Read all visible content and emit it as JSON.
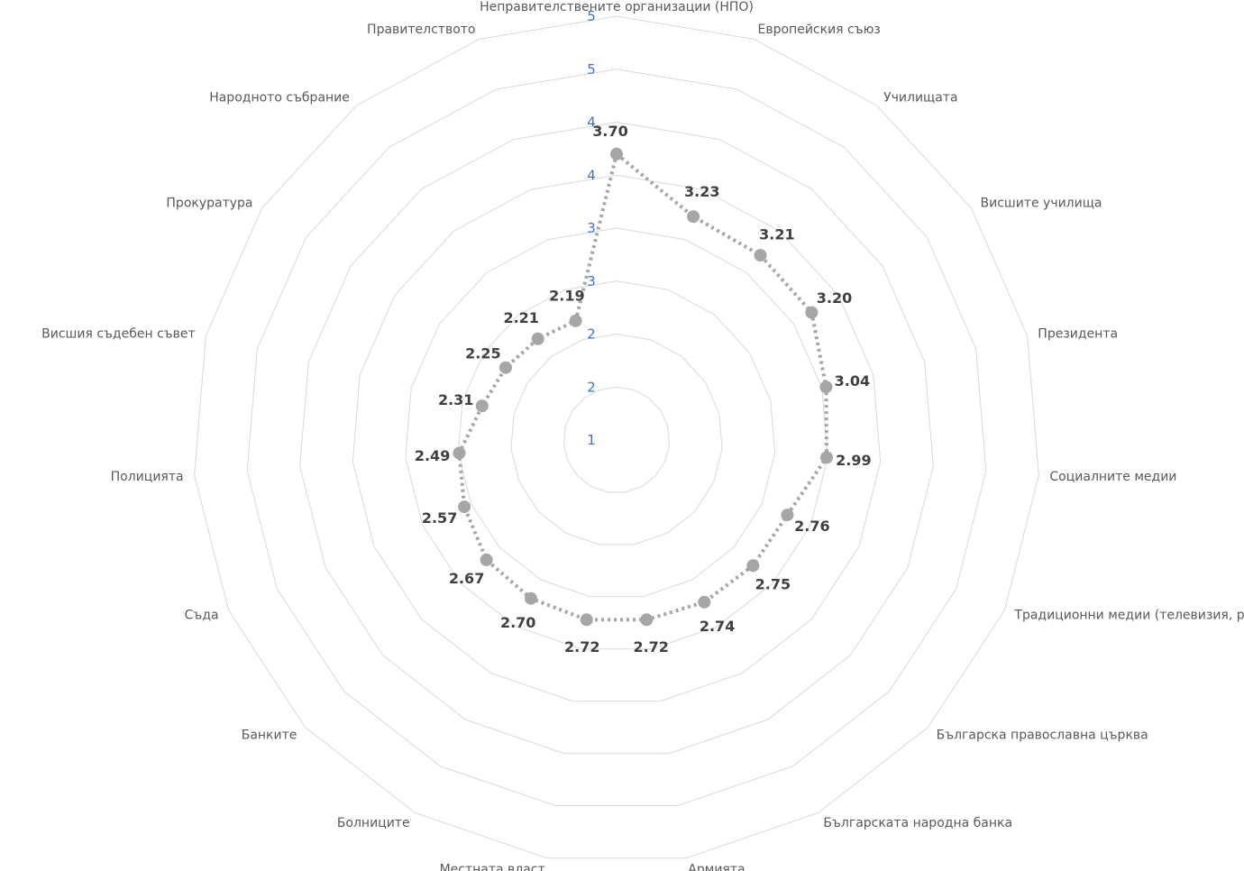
{
  "chart_data": {
    "type": "radar",
    "title": "",
    "categories": [
      "Неправителствените организации (НПО)",
      "Европейския съюз",
      "Училищата",
      "Висшите училища",
      "Президента",
      "Социалните медии",
      "Традиционни медии (телевизия, радио, вестници)",
      "Българска православна църква",
      "Българската народна банка",
      "Армията",
      "Местната власт",
      "Болниците",
      "Банките",
      "Съда",
      "Полицията",
      "Висшия съдебен съвет",
      "Прокуратура",
      "Народното събрание",
      "Правителството"
    ],
    "series": [
      {
        "values": [
          3.7,
          3.23,
          3.21,
          3.2,
          3.04,
          2.99,
          2.76,
          2.75,
          2.74,
          2.72,
          2.72,
          2.7,
          2.67,
          2.57,
          2.49,
          2.31,
          2.25,
          2.21,
          2.19
        ],
        "labels": [
          "3.70",
          "3.23",
          "3.21",
          "3.20",
          "3.04",
          "2.99",
          "2.76",
          "2.75",
          "2.74",
          "2.72",
          "2.72",
          "2.70",
          "2.67",
          "2.57",
          "2.49",
          "2.31",
          "2.25",
          "2.21",
          "2.19"
        ],
        "color": "#a6a6a6"
      }
    ],
    "ticks": [
      1,
      1.5,
      2,
      2.5,
      3,
      3.5,
      4,
      4.5,
      5
    ],
    "tick_labels": [
      "1",
      "2",
      "2",
      "3",
      "3",
      "4",
      "4",
      "5",
      "5"
    ],
    "rmin": 1,
    "rmax": 5,
    "grid": true,
    "legend": "none"
  }
}
